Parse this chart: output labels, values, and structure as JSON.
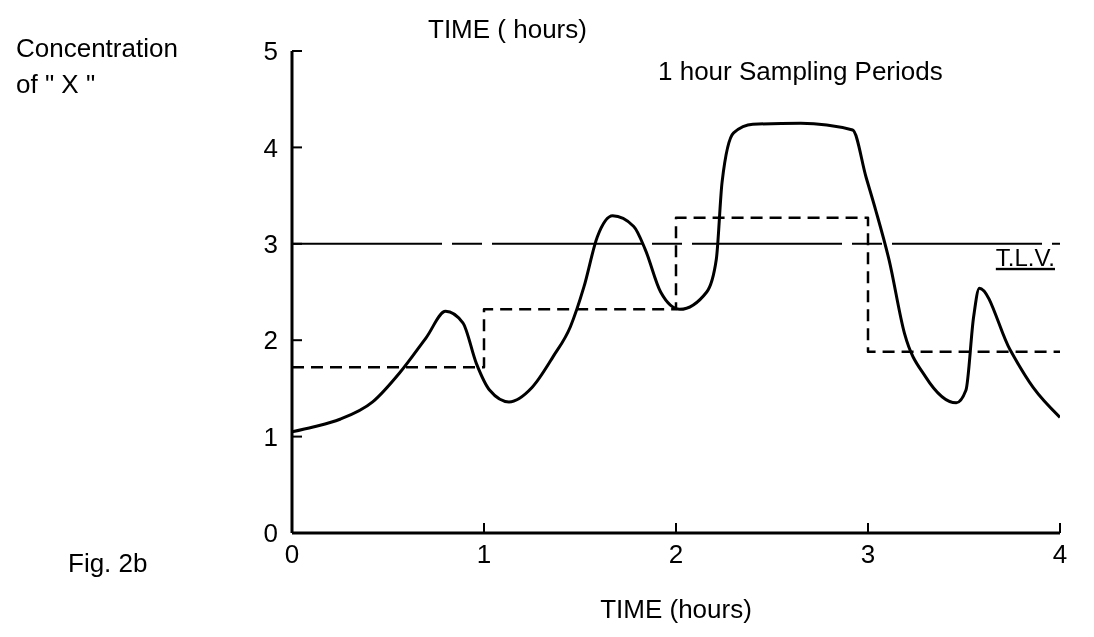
{
  "chart_data": {
    "type": "line",
    "xlabel": "TIME (hours)",
    "ylabel": "Concentration of \" X \"",
    "annotations": [
      "TIME ( hours)",
      "1 hour Sampling Periods",
      "Fig. 2b"
    ],
    "xlim": [
      0,
      4
    ],
    "xticks": [
      0,
      1,
      2,
      3,
      4
    ],
    "ylim": [
      0,
      5
    ],
    "yticks": [
      0,
      1,
      2,
      3,
      4,
      5
    ],
    "grid": false,
    "legend": false,
    "marker": "none",
    "series": [
      {
        "line_style": "solid",
        "color": "#000000",
        "x": [
          0,
          0.11,
          0.25,
          0.42,
          0.56,
          0.7,
          0.8,
          0.89,
          0.96,
          1.03,
          1.13,
          1.25,
          1.36,
          1.45,
          1.52,
          1.59,
          1.67,
          1.78,
          1.84,
          1.92,
          2.02,
          2.16,
          2.21,
          2.24,
          2.3,
          2.4,
          2.65,
          2.92,
          2.99,
          3.04,
          3.11,
          3.19,
          3.3,
          3.46,
          3.51,
          3.55,
          3.58,
          3.74,
          3.86,
          4
        ],
        "values": [
          1.05,
          1.1,
          1.18,
          1.36,
          1.66,
          2.03,
          2.3,
          2.18,
          1.76,
          1.48,
          1.36,
          1.51,
          1.83,
          2.14,
          2.55,
          3.07,
          3.29,
          3.18,
          2.94,
          2.5,
          2.32,
          2.5,
          2.84,
          3.64,
          4.15,
          4.24,
          4.25,
          4.18,
          3.69,
          3.35,
          2.83,
          2.07,
          1.62,
          1.35,
          1.48,
          2.24,
          2.54,
          1.9,
          1.51,
          1.2
        ]
      },
      {
        "type": "step",
        "line_style": "dashed",
        "color": "#000000",
        "x": [
          0,
          1,
          2,
          3,
          4
        ],
        "values": [
          1.72,
          2.32,
          3.27,
          1.88,
          1.88
        ]
      }
    ],
    "ref_lines": [
      {
        "axis": "y",
        "value": 3,
        "label": "T.L.V.",
        "color": "#000000",
        "line_style": "dashed"
      }
    ]
  }
}
